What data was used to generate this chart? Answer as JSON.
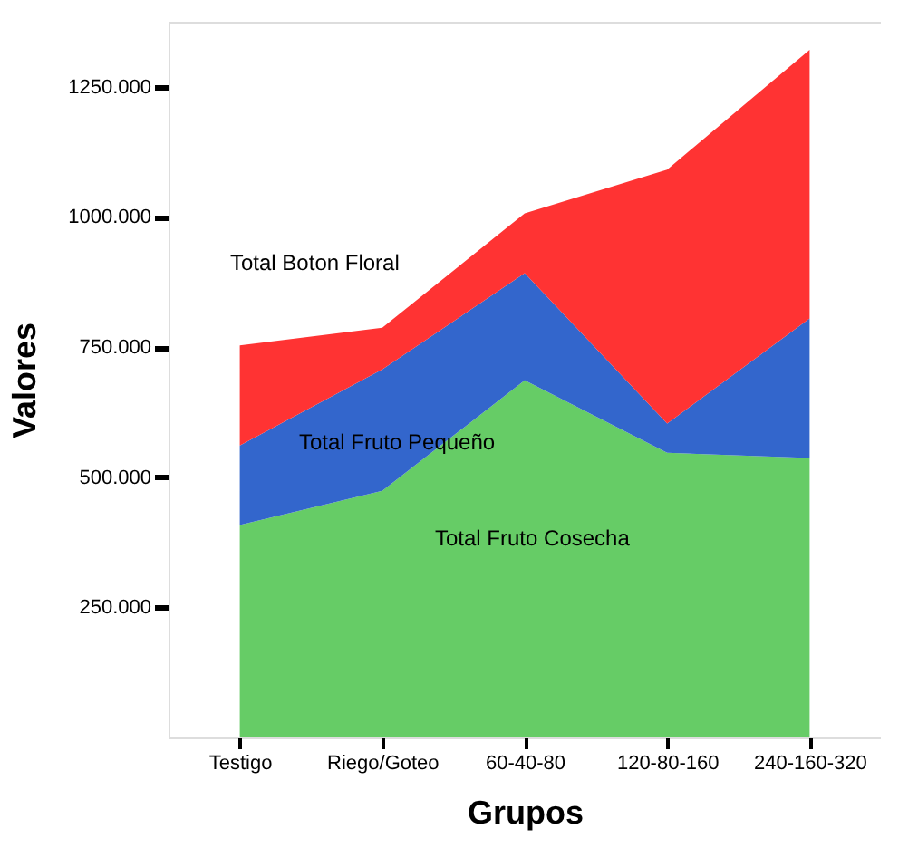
{
  "chart_data": {
    "type": "area",
    "stacked": true,
    "xlabel": "Grupos",
    "ylabel": "Valores",
    "categories": [
      "Testigo",
      "Riego/Goteo",
      "60-40-80",
      "120-80-160",
      "240-160-320"
    ],
    "series": [
      {
        "name": "Total Fruto Cosecha",
        "color": "#66cc66",
        "values": [
          408,
          474,
          686,
          547,
          537
        ]
      },
      {
        "name": "Total Fruto Pequeño",
        "color": "#3366cc",
        "values": [
          153,
          233,
          206,
          56,
          268
        ]
      },
      {
        "name": "Total Boton Floral",
        "color": "#ff3333",
        "values": [
          192,
          80,
          115,
          488,
          516
        ]
      }
    ],
    "ylim": [
      0,
      1375
    ],
    "yticks": [
      {
        "value": 250,
        "label": "250.000"
      },
      {
        "value": 500,
        "label": "500.000"
      },
      {
        "value": 750,
        "label": "750.000"
      },
      {
        "value": 1000,
        "label": "1000.000"
      },
      {
        "value": 1250,
        "label": "1250.000"
      }
    ],
    "grid": false,
    "legend": false
  }
}
